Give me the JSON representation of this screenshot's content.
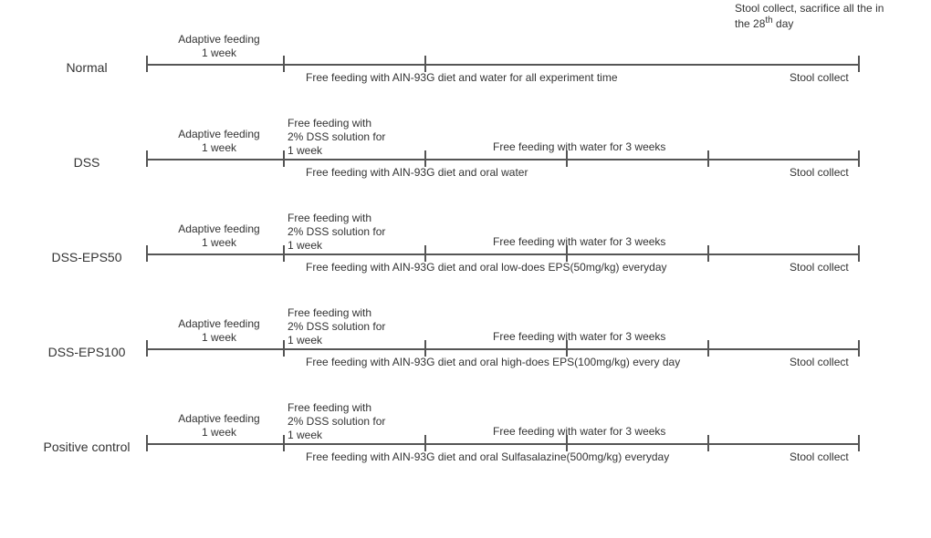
{
  "topNote": "Stool collect, sacrifice all the in the 28",
  "topNoteSuffix": " day",
  "layout": {
    "timelineWidth": 780,
    "lineY": 50,
    "tickHeight": 18,
    "tickHalf": 9,
    "ticks_default": [
      0,
      150,
      305,
      780
    ],
    "ticks_dss": [
      0,
      150,
      305,
      460,
      615,
      780
    ]
  },
  "rows": [
    {
      "name": "Normal",
      "adaptive": "Adaptive feeding\n1 week",
      "below": "Free feeding with AIN-93G diet and water for all experiment time",
      "right": "Stool collect",
      "aboveSegments": null,
      "ticks": "default"
    },
    {
      "name": "DSS",
      "adaptive": "Adaptive feeding\n1 week",
      "below": "Free feeding with AIN-93G diet and oral water",
      "right": "Stool collect",
      "aboveSegments": {
        "seg2": "Free feeding with\n2% DSS solution for\n1 week",
        "seg3": "Free feeding with water for 3 weeks"
      },
      "ticks": "dss"
    },
    {
      "name": "DSS-EPS50",
      "adaptive": "Adaptive feeding\n1 week",
      "below": "Free feeding with AIN-93G diet and oral low-does EPS(50mg/kg) everyday",
      "right": "Stool collect",
      "aboveSegments": {
        "seg2": "Free feeding with\n2% DSS solution for\n1 week",
        "seg3": "Free feeding with water for 3 weeks"
      },
      "ticks": "dss"
    },
    {
      "name": "DSS-EPS100",
      "adaptive": "Adaptive feeding\n1 week",
      "below": "Free feeding with AIN-93G diet and oral high-does EPS(100mg/kg) every day",
      "right": "Stool collect",
      "aboveSegments": {
        "seg2": "Free feeding with\n2% DSS solution for\n1 week",
        "seg3": "Free feeding with water for 3 weeks"
      },
      "ticks": "dss"
    },
    {
      "name": "Positive control",
      "adaptive": "Adaptive feeding\n1 week",
      "below": "Free feeding with AIN-93G diet and oral Sulfasalazine(500mg/kg) everyday",
      "right": "Stool collect",
      "aboveSegments": {
        "seg2": "Free feeding with\n2% DSS solution for\n1 week",
        "seg3": "Free feeding with water for 3 weeks"
      },
      "ticks": "dss"
    }
  ]
}
